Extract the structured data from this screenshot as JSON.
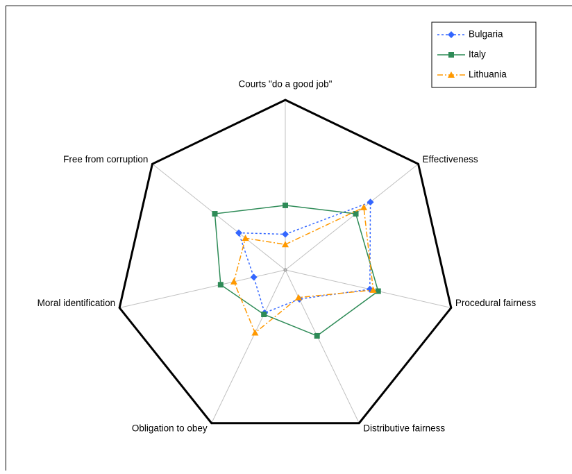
{
  "chart_data": {
    "type": "radar",
    "categories": [
      "Courts \"do a good job\"",
      "Effectiveness",
      "Procedural fairness",
      "Distributive fairness",
      "Obligation to obey",
      "Moral identification",
      "Free from corruption"
    ],
    "rlim": [
      0,
      1
    ],
    "series": [
      {
        "name": "Bulgaria",
        "color": "#3366ff",
        "dash": "dotted",
        "marker": "diamond",
        "values": [
          0.21,
          0.64,
          0.51,
          0.19,
          0.28,
          0.19,
          0.35
        ]
      },
      {
        "name": "Italy",
        "color": "#2e8b57",
        "dash": "solid",
        "marker": "square",
        "values": [
          0.38,
          0.53,
          0.56,
          0.43,
          0.29,
          0.39,
          0.53
        ]
      },
      {
        "name": "Lithuania",
        "color": "#ff9900",
        "dash": "dashdot",
        "marker": "triangle",
        "values": [
          0.15,
          0.59,
          0.53,
          0.18,
          0.41,
          0.31,
          0.3
        ]
      }
    ],
    "legend": "upper right"
  }
}
